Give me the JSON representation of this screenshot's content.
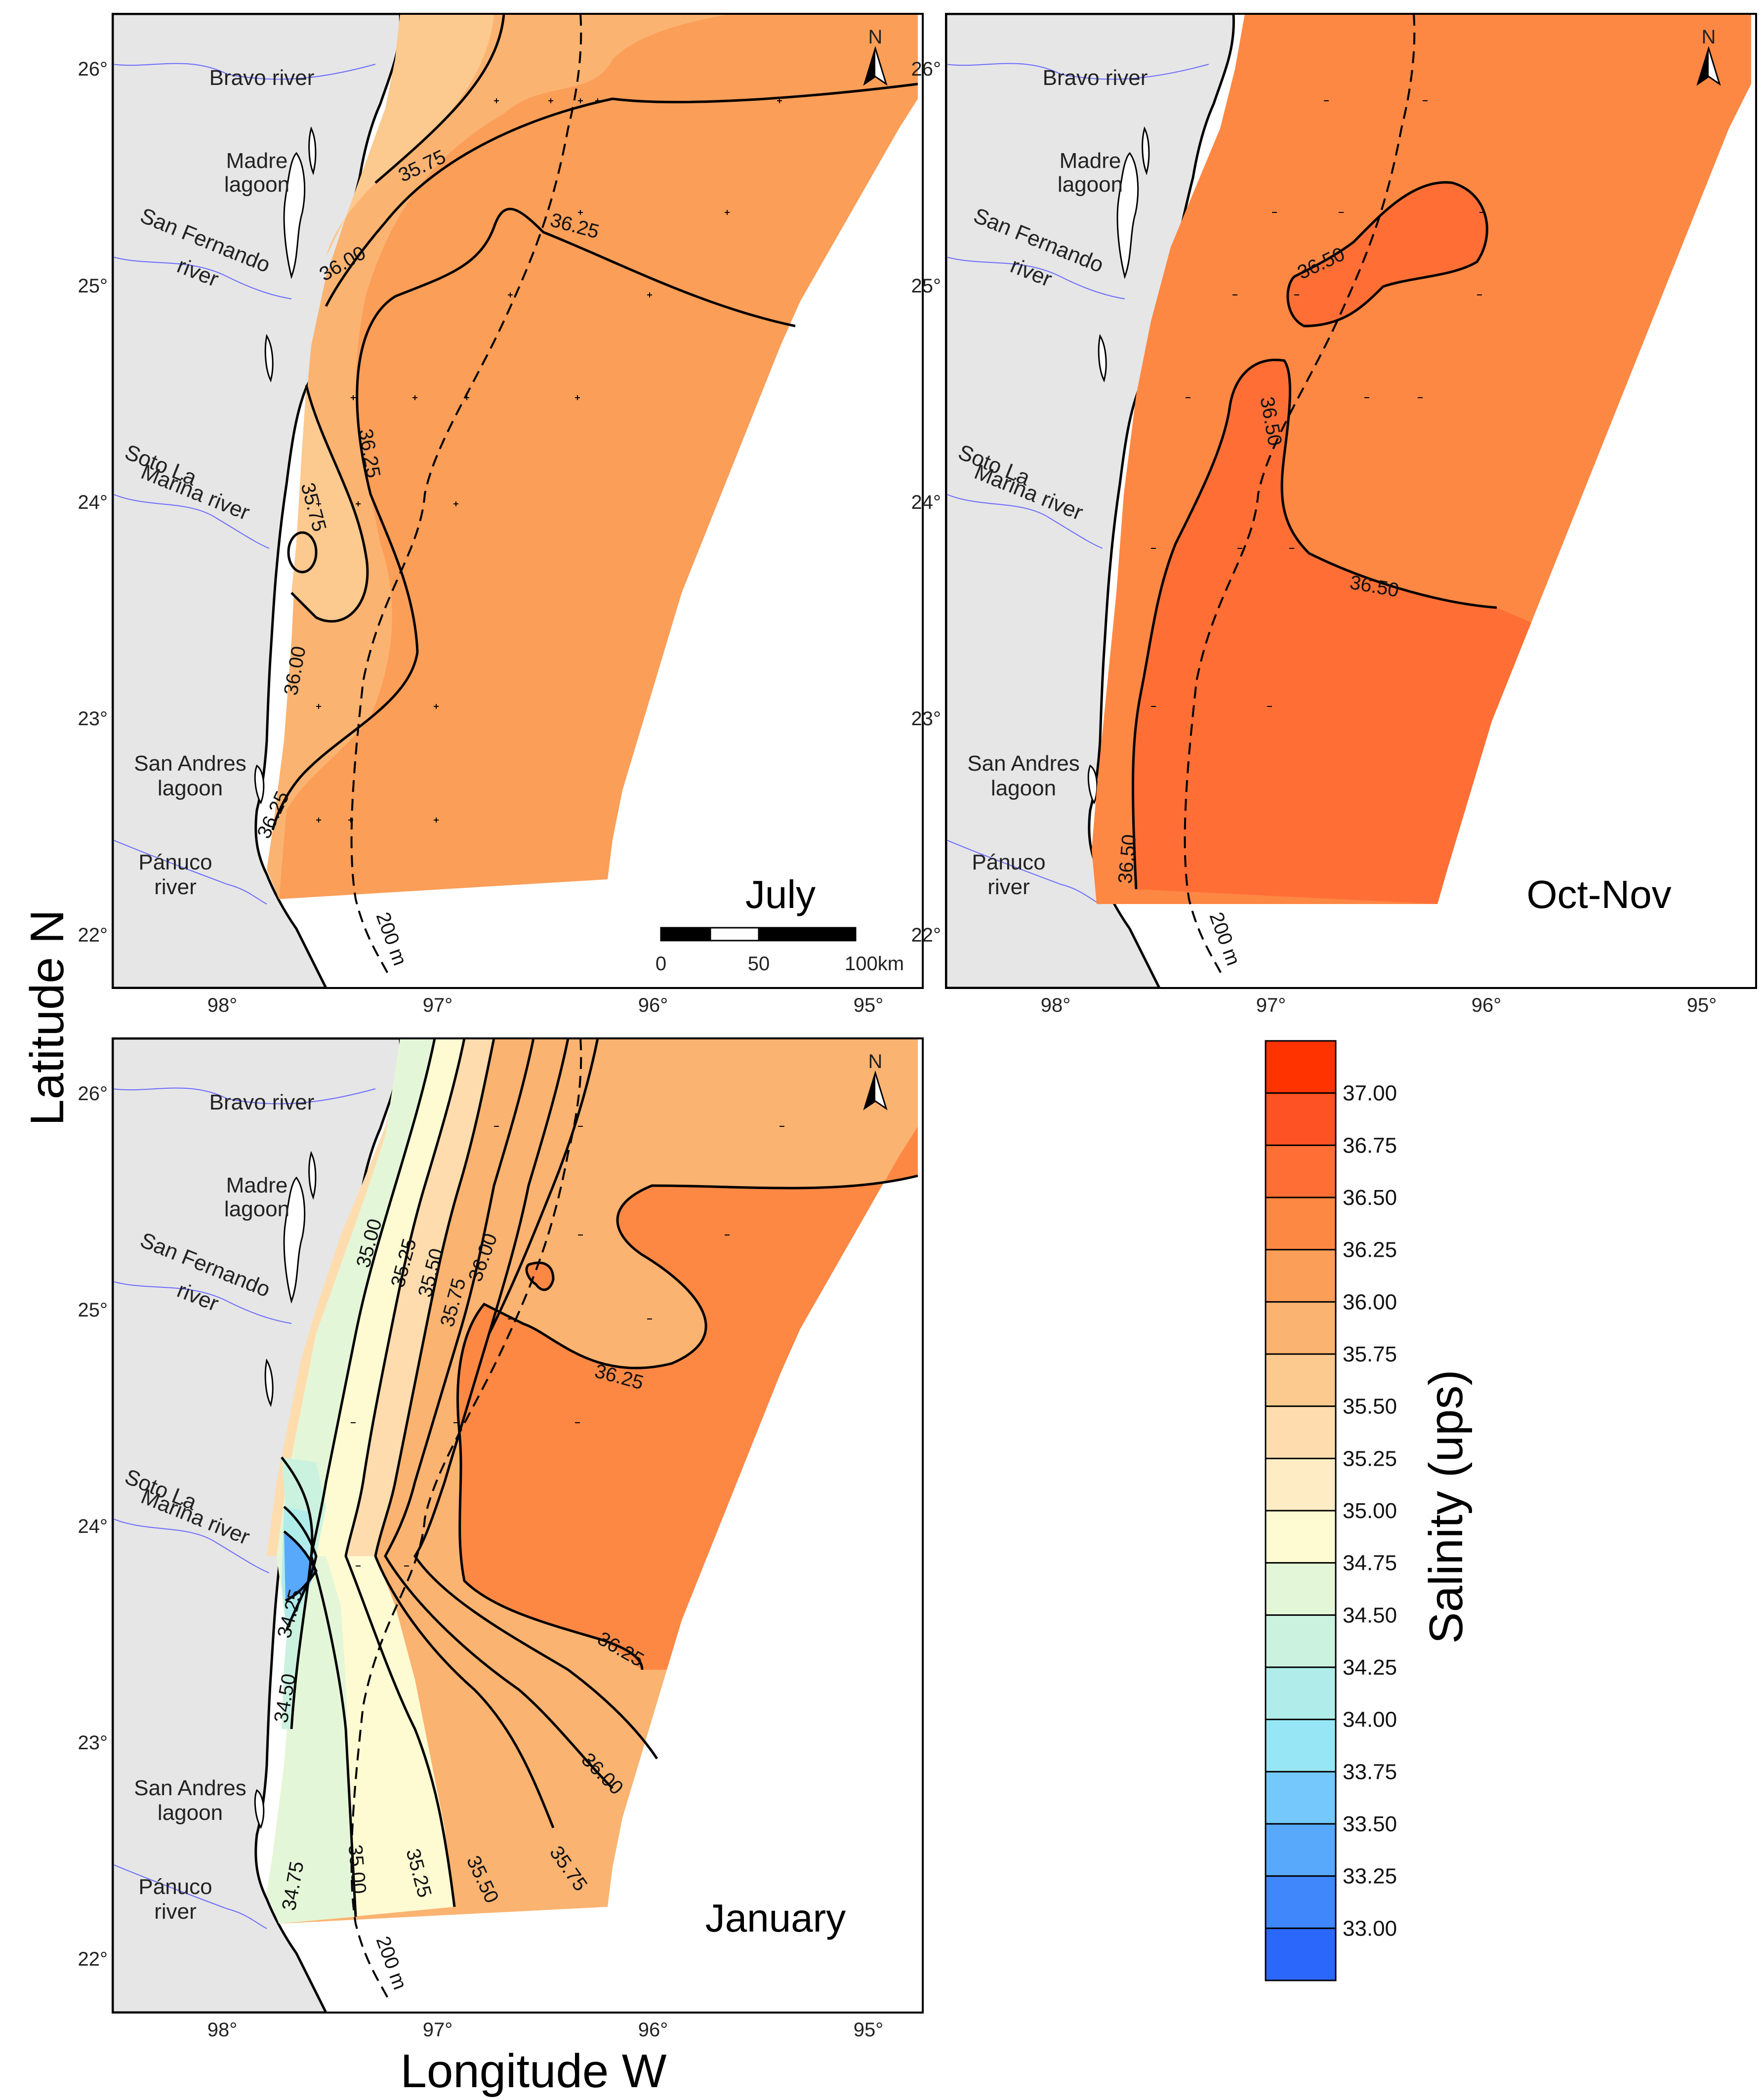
{
  "axes": {
    "xlabel": "Longitude W",
    "ylabel": "Latitude N",
    "lon_ticks": [
      "98°",
      "97°",
      "96°",
      "95°"
    ],
    "lat_ticks": [
      "26°",
      "25°",
      "24°",
      "23°",
      "22°"
    ]
  },
  "places": [
    [
      "Bravo river"
    ],
    [
      "Madre",
      "lagoon"
    ],
    [
      "San Fernando",
      "river"
    ],
    [
      "Soto La",
      "Marina river"
    ],
    [
      "San Andres",
      "lagoon"
    ],
    [
      "Pánuco",
      "river"
    ]
  ],
  "north_label": "N",
  "isobath_label": "200 m",
  "scale_bar": {
    "labels": [
      "0",
      "50",
      "100km"
    ]
  },
  "panels": [
    {
      "title": "July",
      "contour_labels": [
        "35.75",
        "36.00",
        "36.25",
        "35.75",
        "36.25",
        "36.00",
        "36.25"
      ]
    },
    {
      "title": "Oct-Nov",
      "contour_labels": [
        "36.50",
        "36.50",
        "36.50",
        "36.50"
      ]
    },
    {
      "title": "January",
      "contour_labels": [
        "35.00",
        "35.25",
        "35.50",
        "35.75",
        "36.00",
        "36.25",
        "36.25",
        "34.25",
        "34.50",
        "34.75",
        "35.00",
        "35.25",
        "35.50",
        "35.75",
        "36.00"
      ]
    }
  ],
  "colorbar": {
    "title": "Salinity (ups)",
    "levels": [
      "37.00",
      "36.75",
      "36.50",
      "36.25",
      "36.00",
      "35.75",
      "35.50",
      "35.25",
      "35.00",
      "34.75",
      "34.50",
      "34.25",
      "34.00",
      "33.75",
      "33.50",
      "33.25",
      "33.00"
    ],
    "colors": [
      "#ff3300",
      "#ff5224",
      "#ff6f35",
      "#fd8844",
      "#fb9e58",
      "#fbb371",
      "#fcc98f",
      "#fedcae",
      "#feedc4",
      "#fefbd2",
      "#e4f6d8",
      "#cbf2df",
      "#b0ecea",
      "#97e6f6",
      "#74c8fb",
      "#58a8fb",
      "#3f87fb",
      "#2b67fb"
    ]
  },
  "colors": {
    "land": "#e6e6e6",
    "river": "#6b6bff",
    "contour": "#000000"
  }
}
